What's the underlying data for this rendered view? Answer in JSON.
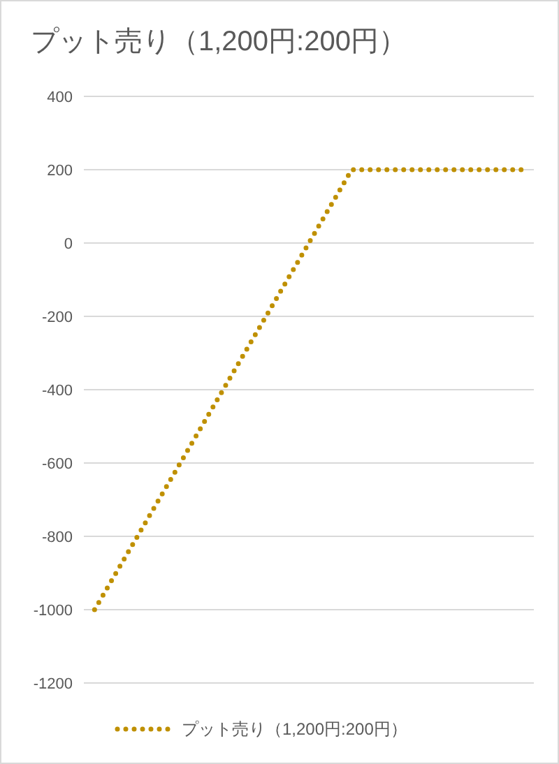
{
  "chart_data": {
    "type": "line",
    "title": "プット売り（1,200円:200円）",
    "categories": [
      null,
      null,
      null,
      null,
      null,
      null,
      null,
      null,
      null,
      null,
      null,
      null,
      null,
      null,
      null,
      null,
      null,
      null,
      null,
      null,
      null
    ],
    "series": [
      {
        "name": "プット売り（1,200円:200円）",
        "color": "#bf9000",
        "values": [
          -1000,
          -900,
          -800,
          -700,
          -600,
          -500,
          -400,
          -300,
          -200,
          -100,
          0,
          100,
          200,
          200,
          200,
          200,
          200,
          200,
          200,
          200,
          200
        ]
      }
    ],
    "ylim": [
      -1200,
      400
    ],
    "yticks": [
      -1200,
      -1000,
      -800,
      -600,
      -400,
      -200,
      0,
      200,
      400
    ],
    "grid": "y",
    "legend": "bottom",
    "line_style": "dotted"
  }
}
